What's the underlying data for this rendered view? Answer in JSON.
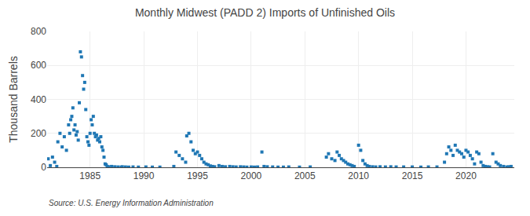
{
  "chart_data": {
    "type": "scatter",
    "title": "Monthly Midwest (PADD 2) Imports of Unfinished Oils",
    "ylabel": "Thousand Barrels",
    "annotations": [
      "Source: U.S. Energy Information Administration"
    ],
    "marker": "square",
    "grid": true,
    "xlim": [
      1981.0,
      2024.5
    ],
    "xticks": [
      1985,
      1990,
      1995,
      2000,
      2005,
      2010,
      2015,
      2020
    ],
    "ylim": [
      0,
      800
    ],
    "yticks": [
      0,
      200,
      400,
      600,
      800
    ],
    "x": [
      1981.1,
      1981.3,
      1981.5,
      1981.7,
      1981.9,
      1982.0,
      1982.2,
      1982.4,
      1982.6,
      1982.8,
      1983.0,
      1983.1,
      1983.2,
      1983.3,
      1983.4,
      1983.5,
      1983.6,
      1983.7,
      1983.8,
      1983.9,
      1984.0,
      1984.1,
      1984.2,
      1984.3,
      1984.4,
      1984.5,
      1984.6,
      1984.7,
      1984.8,
      1984.9,
      1985.0,
      1985.1,
      1985.2,
      1985.3,
      1985.4,
      1985.5,
      1985.6,
      1985.7,
      1985.8,
      1985.9,
      1986.0,
      1986.1,
      1986.2,
      1986.3,
      1986.4,
      1986.5,
      1986.6,
      1986.7,
      1987.0,
      1987.3,
      1987.6,
      1987.9,
      1988.0,
      1988.3,
      1988.6,
      1989.0,
      1989.5,
      1990.2,
      1990.8,
      1991.5,
      1992.8,
      1993.0,
      1993.3,
      1993.6,
      1993.9,
      1994.0,
      1994.2,
      1994.4,
      1994.6,
      1994.8,
      1995.0,
      1995.2,
      1995.4,
      1995.6,
      1995.8,
      1996.0,
      1996.2,
      1996.4,
      1996.6,
      1997.0,
      1997.3,
      1997.6,
      1998.0,
      1998.3,
      1998.6,
      1999.0,
      1999.3,
      1999.6,
      2000.0,
      2000.3,
      2000.6,
      2001.0,
      2001.2,
      2001.5,
      2002.0,
      2002.5,
      2003.0,
      2003.5,
      2004.5,
      2005.5,
      2007.0,
      2007.2,
      2007.5,
      2007.8,
      2008.0,
      2008.2,
      2008.4,
      2008.6,
      2008.8,
      2009.0,
      2009.2,
      2009.4,
      2009.6,
      2010.0,
      2010.2,
      2010.4,
      2010.6,
      2010.8,
      2011.0,
      2011.3,
      2011.6,
      2012.0,
      2012.5,
      2013.0,
      2013.5,
      2014.2,
      2015.0,
      2015.8,
      2016.5,
      2017.3,
      2018.0,
      2018.2,
      2018.4,
      2018.6,
      2018.8,
      2019.0,
      2019.2,
      2019.4,
      2019.6,
      2019.8,
      2020.0,
      2020.2,
      2020.4,
      2020.6,
      2020.8,
      2021.0,
      2021.2,
      2021.4,
      2021.6,
      2021.8,
      2022.0,
      2022.2,
      2022.5,
      2022.8,
      2023.0,
      2023.2,
      2023.5,
      2023.8,
      2024.0,
      2024.2
    ],
    "values": [
      50,
      10,
      60,
      30,
      5,
      150,
      200,
      120,
      180,
      100,
      250,
      200,
      280,
      300,
      350,
      220,
      250,
      190,
      210,
      160,
      380,
      680,
      650,
      540,
      460,
      500,
      340,
      180,
      150,
      130,
      200,
      280,
      250,
      300,
      200,
      180,
      190,
      160,
      170,
      150,
      180,
      120,
      100,
      60,
      20,
      15,
      5,
      3,
      5,
      3,
      2,
      1,
      3,
      2,
      1,
      2,
      1,
      2,
      1,
      1,
      5,
      90,
      70,
      50,
      30,
      185,
      200,
      150,
      100,
      80,
      90,
      70,
      50,
      30,
      20,
      15,
      8,
      5,
      3,
      10,
      5,
      3,
      5,
      3,
      2,
      3,
      2,
      1,
      2,
      1,
      2,
      90,
      5,
      3,
      2,
      1,
      1,
      2,
      1,
      2,
      60,
      80,
      50,
      40,
      90,
      70,
      50,
      40,
      30,
      20,
      15,
      10,
      5,
      130,
      100,
      40,
      20,
      10,
      5,
      3,
      2,
      3,
      2,
      3,
      2,
      2,
      2,
      1,
      2,
      2,
      30,
      80,
      120,
      100,
      70,
      130,
      100,
      90,
      80,
      60,
      100,
      90,
      70,
      50,
      20,
      90,
      80,
      30,
      10,
      5,
      3,
      2,
      80,
      30,
      20,
      10,
      5,
      2,
      3,
      5
    ]
  }
}
